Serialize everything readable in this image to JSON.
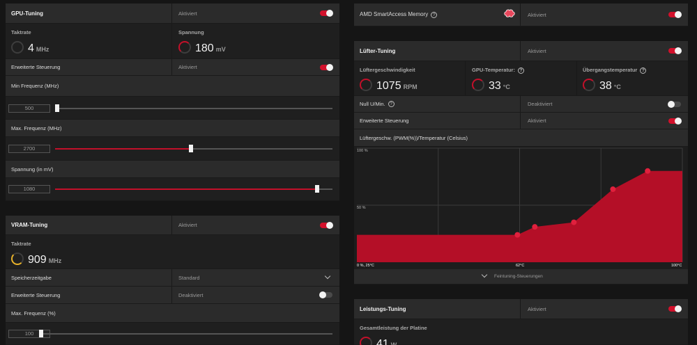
{
  "gpu": {
    "title": "GPU-Tuning",
    "status": "Aktiviert",
    "clock_label": "Taktrate",
    "clock_value": "4",
    "clock_unit": "MHz",
    "voltage_label": "Spannung",
    "voltage_value": "180",
    "voltage_unit": "mV",
    "advanced_label": "Erweiterte Steuerung",
    "advanced_status": "Aktiviert",
    "min_freq_label": "Min Frequenz (MHz)",
    "min_freq_value": "500",
    "max_freq_label": "Max. Frequenz (MHz)",
    "max_freq_value": "2700",
    "voltage_mv_label": "Spannung (in mV)",
    "voltage_mv_value": "1080"
  },
  "vram": {
    "title": "VRAM-Tuning",
    "status": "Aktiviert",
    "clock_label": "Taktrate",
    "clock_value": "909",
    "clock_unit": "MHz",
    "timing_label": "Speicherzeitgabe",
    "timing_value": "Standard",
    "advanced_label": "Erweiterte Steuerung",
    "advanced_status": "Deaktiviert",
    "max_freq_label": "Max. Frequenz (%)",
    "max_freq_value": "100"
  },
  "sam": {
    "label": "AMD SmartAccess Memory",
    "status": "Aktiviert"
  },
  "fan": {
    "title": "Lüfter-Tuning",
    "status": "Aktiviert",
    "speed_label": "Lüftergeschwindigkeit",
    "speed_value": "1075",
    "speed_unit": "RPM",
    "gpu_temp_label": "GPU-Temperatur:",
    "gpu_temp_value": "33",
    "gpu_temp_unit": "°C",
    "junction_label": "Übergangstemperatur",
    "junction_value": "38",
    "junction_unit": "°C",
    "zero_rpm_label": "Null U/Min.",
    "zero_rpm_status": "Deaktiviert",
    "advanced_label": "Erweiterte Steuerung",
    "advanced_status": "Aktiviert",
    "curve_label": "Lüftergeschw. (PWM(%))/Temperatur (Celsius)",
    "fine_tune_label": "Feintuning-Steuerungen"
  },
  "power": {
    "title": "Leistungs-Tuning",
    "status": "Aktiviert",
    "board_power_label": "Gesamtleistung der Platine",
    "board_power_value": "41",
    "board_power_unit": "W"
  },
  "chart_data": {
    "type": "area",
    "title": "Lüftergeschw. (PWM(%))/Temperatur (Celsius)",
    "xlabel": "Temperatur (Celsius)",
    "ylabel": "PWM (%)",
    "tick_labels": {
      "y_top": "100 %",
      "y_mid": "50 %",
      "origin": "0 %, 25°C",
      "x_mid": "62°C",
      "x_max": "100°C"
    },
    "xlim": [
      25,
      100
    ],
    "ylim": [
      0,
      100
    ],
    "x": [
      25,
      62,
      66,
      75,
      84,
      92,
      100
    ],
    "y": [
      24,
      24,
      31,
      35,
      64,
      80,
      80
    ],
    "points": [
      [
        62,
        24
      ],
      [
        66,
        31
      ],
      [
        75,
        35
      ],
      [
        84,
        64
      ],
      [
        92,
        80
      ]
    ],
    "accent_color": "#c4102a"
  }
}
